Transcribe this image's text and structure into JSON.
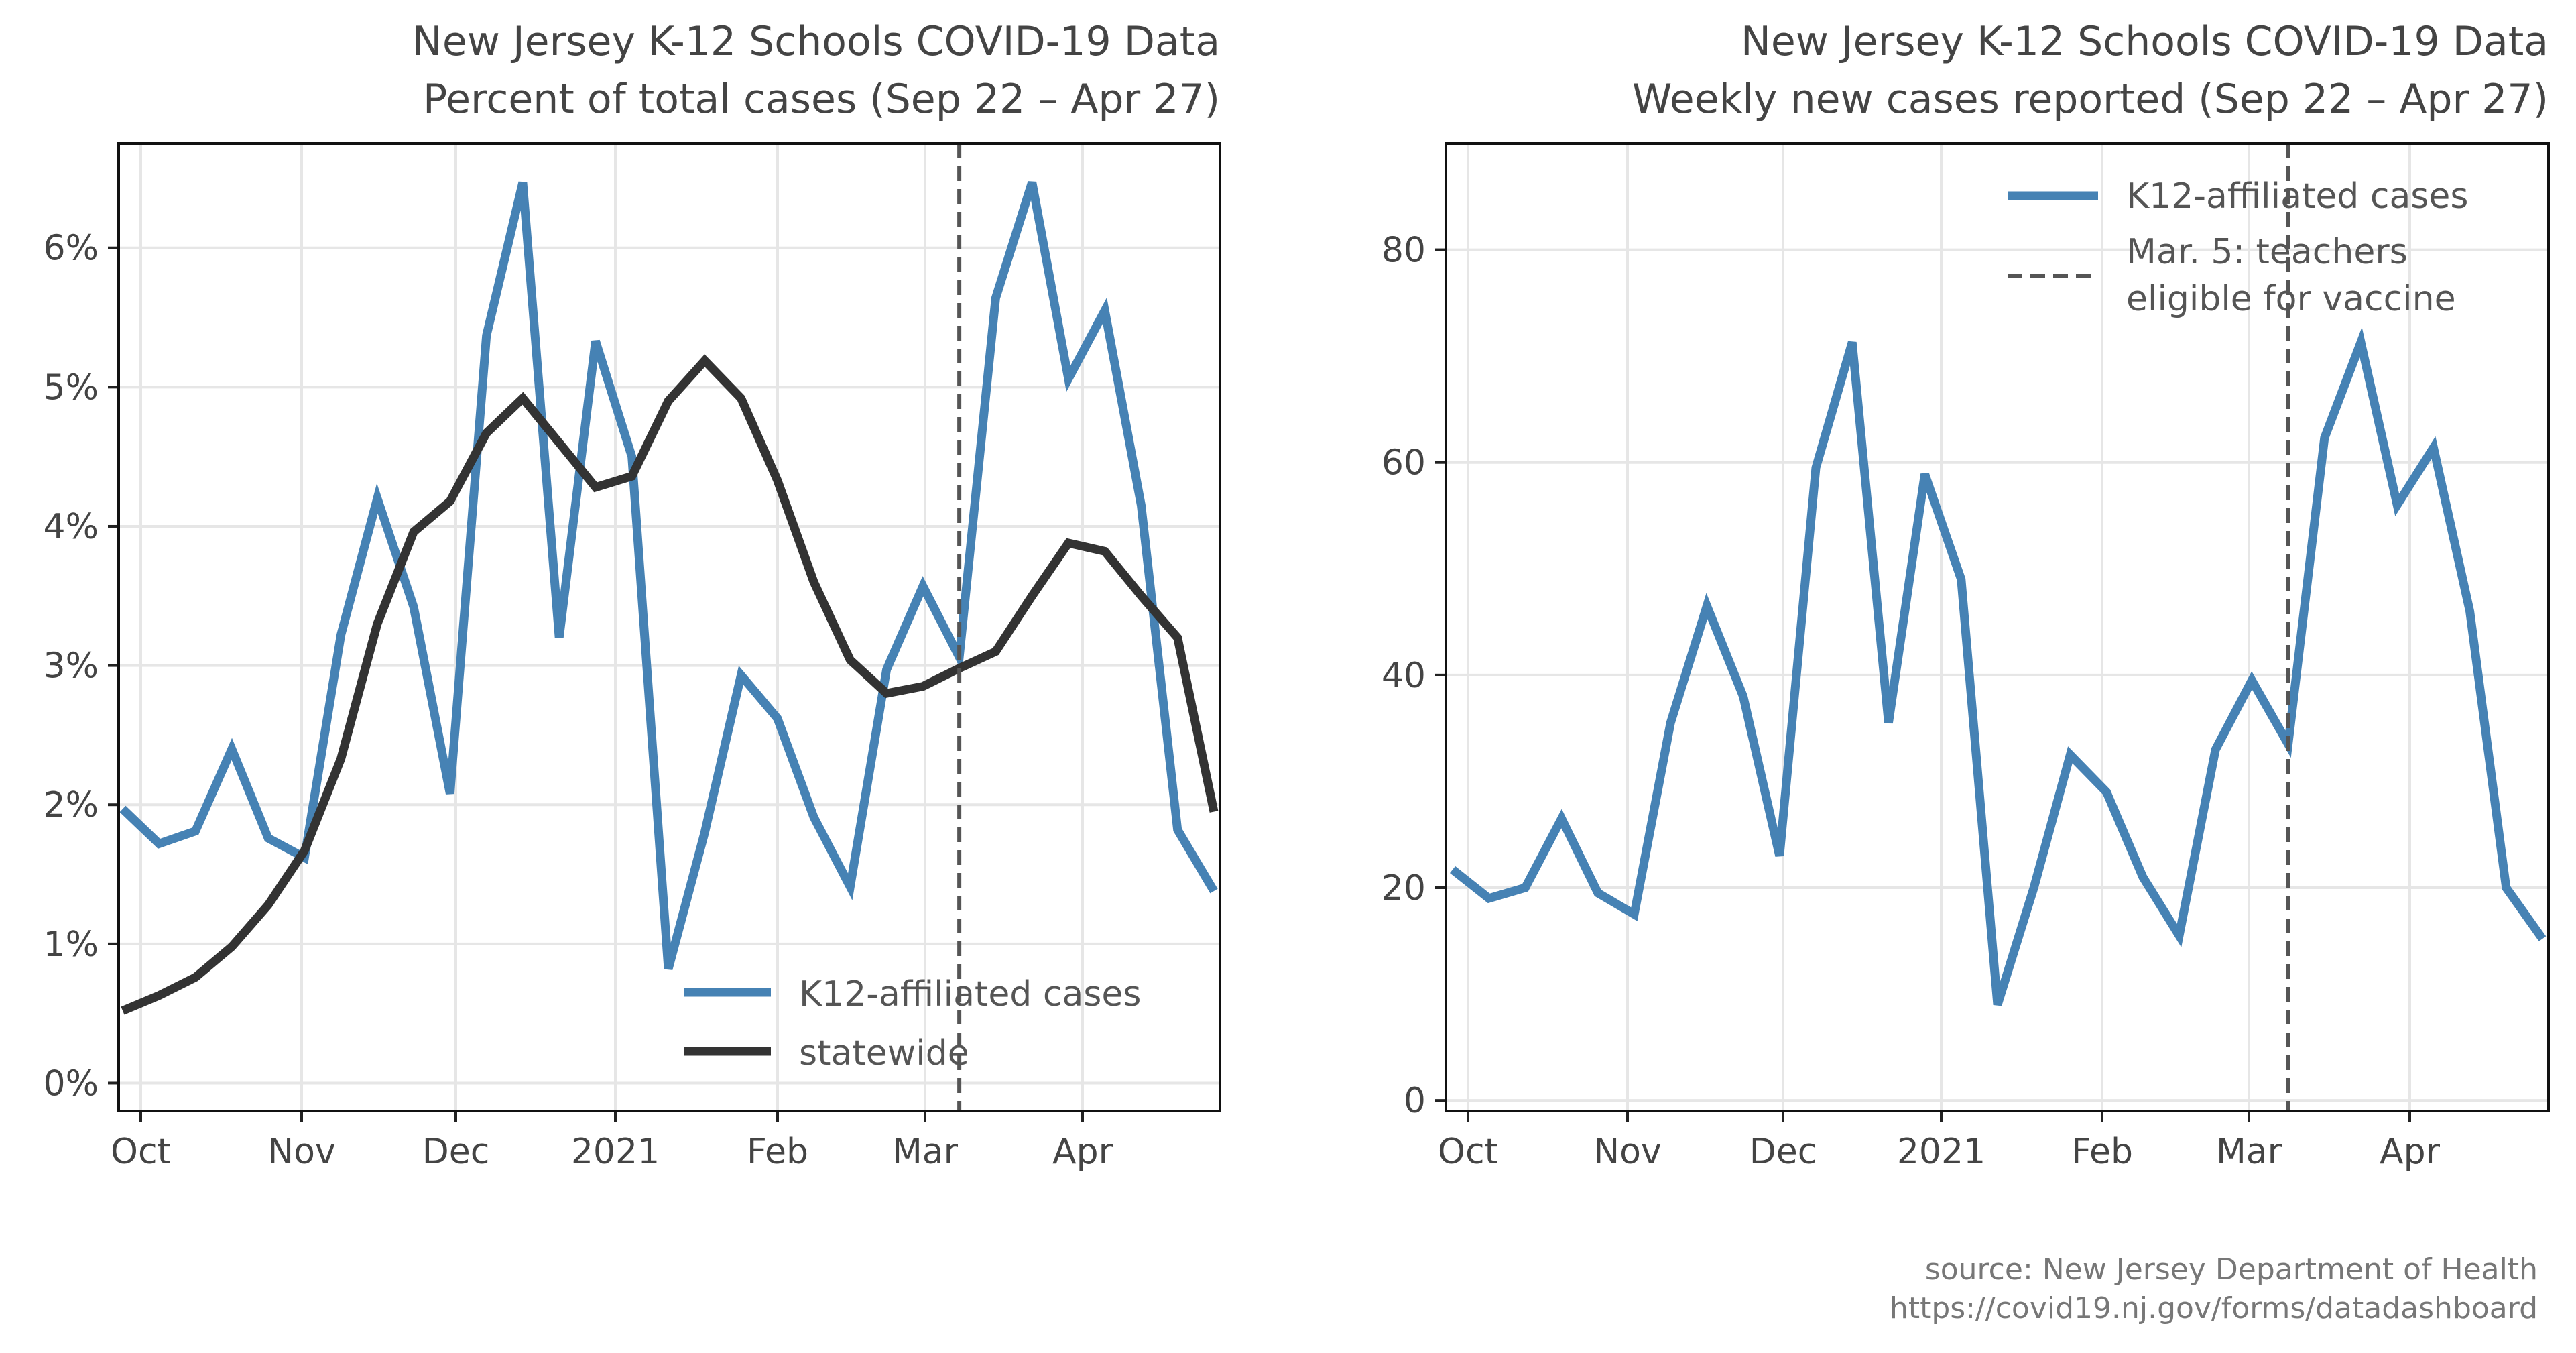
{
  "source": {
    "line1": "source: New Jersey Department of Health",
    "line2": "https://covid19.nj.gov/forms/datadashboard"
  },
  "chart_data": [
    {
      "type": "line",
      "title": "New Jersey K-12 Schools COVID-19 Data",
      "subtitle": "Percent of total cases (Sep 22 – Apr 27)",
      "xlabel": "",
      "ylabel": "",
      "x_tick_labels": [
        "Oct",
        "Nov",
        "Dec",
        "2021",
        "Feb",
        "Mar",
        "Apr"
      ],
      "y_ticks": [
        0,
        1,
        2,
        3,
        4,
        5,
        6
      ],
      "y_tick_labels": [
        "0%",
        "1%",
        "2%",
        "3%",
        "4%",
        "5%",
        "6%"
      ],
      "ylim": [
        -0.2,
        6.75
      ],
      "x_weeks": 31,
      "grid": true,
      "legend_position": "lower-right",
      "vline": {
        "week": 23,
        "label": "Mar. 5: teachers eligible for vaccine",
        "color": "#555555"
      },
      "series": [
        {
          "name": "K12-affiliated cases",
          "color": "#4682b4",
          "values": [
            1.97,
            1.72,
            1.81,
            2.4,
            1.76,
            1.62,
            3.22,
            4.2,
            3.42,
            2.08,
            5.37,
            6.47,
            3.2,
            5.33,
            4.5,
            0.82,
            1.8,
            2.93,
            2.62,
            1.91,
            1.41,
            2.97,
            3.57,
            3.06,
            5.64,
            6.47,
            5.06,
            5.55,
            4.15,
            1.82,
            1.38
          ]
        },
        {
          "name": "statewide",
          "color": "#333333",
          "values": [
            0.52,
            0.63,
            0.76,
            0.98,
            1.28,
            1.67,
            2.33,
            3.3,
            3.96,
            4.18,
            4.67,
            4.92,
            4.6,
            4.28,
            4.36,
            4.9,
            5.19,
            4.92,
            4.33,
            3.6,
            3.04,
            2.8,
            2.85,
            2.98,
            3.1,
            3.5,
            3.88,
            3.82,
            3.5,
            3.2,
            1.95
          ]
        }
      ]
    },
    {
      "type": "line",
      "title": "New Jersey K-12 Schools COVID-19 Data",
      "subtitle": "Weekly new cases reported (Sep 22 – Apr 27)",
      "xlabel": "",
      "ylabel": "",
      "x_tick_labels": [
        "Oct",
        "Nov",
        "Dec",
        "2021",
        "Feb",
        "Mar",
        "Apr"
      ],
      "y_ticks": [
        0,
        20,
        40,
        60,
        80
      ],
      "y_tick_labels": [
        "0",
        "20",
        "40",
        "60",
        "80"
      ],
      "ylim": [
        -1,
        90
      ],
      "x_weeks": 31,
      "grid": true,
      "legend_position": "upper-right",
      "vline": {
        "week": 23,
        "label": "Mar. 5: teachers eligible for vaccine",
        "color": "#555555"
      },
      "series": [
        {
          "name": "K12-affiliated cases",
          "color": "#4682b4",
          "values": [
            21.7,
            19.0,
            20.0,
            26.5,
            19.5,
            17.5,
            35.5,
            46.5,
            38.0,
            23.0,
            59.5,
            71.3,
            35.5,
            58.9,
            49.0,
            9.0,
            20.0,
            32.5,
            29.0,
            21.0,
            15.5,
            33.0,
            39.5,
            33.5,
            62.3,
            71.3,
            56.0,
            61.4,
            46.0,
            20.0,
            15.2
          ]
        }
      ]
    }
  ]
}
